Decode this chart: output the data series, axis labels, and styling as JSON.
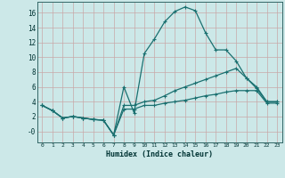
{
  "xlabel": "Humidex (Indice chaleur)",
  "background_color": "#cce8e8",
  "grid_color": "#b8d8d8",
  "line_color": "#1a7070",
  "x_ticks": [
    0,
    1,
    2,
    3,
    4,
    5,
    6,
    7,
    8,
    9,
    10,
    11,
    12,
    13,
    14,
    15,
    16,
    17,
    18,
    19,
    20,
    21,
    22,
    23
  ],
  "y_ticks": [
    0,
    2,
    4,
    6,
    8,
    10,
    12,
    14,
    16
  ],
  "y_tick_labels": [
    "-0",
    "2",
    "4",
    "6",
    "8",
    "10",
    "12",
    "14",
    "16"
  ],
  "ylim": [
    -1.5,
    17.5
  ],
  "xlim": [
    -0.5,
    23.5
  ],
  "series": [
    [
      3.5,
      2.8,
      1.8,
      2.0,
      1.8,
      1.6,
      1.5,
      -0.5,
      6.0,
      2.5,
      10.5,
      12.5,
      14.8,
      16.2,
      16.8,
      16.3,
      13.3,
      11.0,
      11.0,
      9.5,
      7.2,
      6.0,
      4.0,
      4.0
    ],
    [
      3.5,
      2.8,
      1.8,
      2.0,
      1.8,
      1.6,
      1.5,
      -0.5,
      3.5,
      3.5,
      4.0,
      4.2,
      4.8,
      5.5,
      6.0,
      6.5,
      7.0,
      7.5,
      8.0,
      8.5,
      7.2,
      5.8,
      4.0,
      4.0
    ],
    [
      3.5,
      2.8,
      1.8,
      2.0,
      1.8,
      1.6,
      1.5,
      -0.5,
      3.0,
      3.0,
      3.5,
      3.5,
      3.8,
      4.0,
      4.2,
      4.5,
      4.8,
      5.0,
      5.3,
      5.5,
      5.5,
      5.5,
      3.8,
      3.8
    ]
  ]
}
